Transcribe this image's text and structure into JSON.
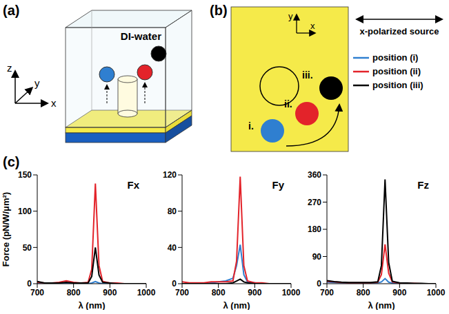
{
  "panels": [
    {
      "letter": "(a)",
      "medium": "DI-water",
      "axes": [
        "z",
        "y",
        "x"
      ]
    },
    {
      "letter": "(b)",
      "axes": [
        "y",
        "x"
      ],
      "source": "x-polarized source",
      "positions": [
        "i.",
        "ii.",
        "iii."
      ]
    },
    {
      "letter": "(c)"
    }
  ],
  "chart_data": [
    {
      "type": "line",
      "title": "Fx",
      "x_label": "λ (nm)",
      "y_label": "Force (pN/W/μm²)",
      "grid": false,
      "x": [
        700,
        720,
        740,
        760,
        780,
        800,
        820,
        840,
        850,
        860,
        870,
        880,
        900,
        920,
        940,
        960,
        980,
        1000
      ],
      "xlim": [
        700,
        1000
      ],
      "xticks": [
        700,
        800,
        900,
        1000
      ],
      "ylim": [
        0,
        150
      ],
      "yticks": [
        0,
        50,
        100,
        150
      ],
      "series": [
        {
          "name": "position (i)",
          "color": "#2f7fd0",
          "values": [
            0,
            0,
            0,
            0,
            0,
            0,
            0,
            0,
            1,
            3,
            1,
            0,
            0,
            0,
            0,
            0,
            0,
            0
          ]
        },
        {
          "name": "position (ii)",
          "color": "#e3232a",
          "values": [
            2,
            1,
            1,
            2,
            4,
            2,
            1,
            2,
            20,
            138,
            25,
            3,
            1,
            1,
            0,
            0,
            0,
            0
          ]
        },
        {
          "name": "position (iii)",
          "color": "#000000",
          "values": [
            3,
            1,
            1,
            1,
            2,
            1,
            1,
            1,
            10,
            50,
            12,
            2,
            1,
            0,
            0,
            0,
            0,
            0
          ]
        }
      ]
    },
    {
      "type": "line",
      "title": "Fy",
      "x_label": "λ (nm)",
      "grid": false,
      "x": [
        700,
        720,
        740,
        760,
        780,
        800,
        820,
        840,
        850,
        860,
        870,
        880,
        900,
        920,
        940,
        960,
        980,
        1000
      ],
      "xlim": [
        700,
        1000
      ],
      "xticks": [
        700,
        800,
        900,
        1000
      ],
      "ylim": [
        0,
        120
      ],
      "yticks": [
        0,
        40,
        80,
        120
      ],
      "series": [
        {
          "name": "position (i)",
          "color": "#2f7fd0",
          "values": [
            0,
            0,
            0,
            0,
            1,
            2,
            3,
            6,
            20,
            43,
            10,
            2,
            1,
            0,
            0,
            0,
            0,
            0
          ]
        },
        {
          "name": "position (ii)",
          "color": "#e3232a",
          "values": [
            2,
            1,
            1,
            1,
            2,
            2,
            2,
            3,
            25,
            118,
            20,
            3,
            1,
            1,
            0,
            0,
            0,
            0
          ]
        },
        {
          "name": "position (iii)",
          "color": "#000000",
          "values": [
            0,
            0,
            0,
            0,
            0,
            0,
            0,
            1,
            3,
            5,
            2,
            1,
            0,
            0,
            0,
            0,
            0,
            0
          ]
        }
      ]
    },
    {
      "type": "line",
      "title": "Fz",
      "x_label": "λ (nm)",
      "grid": false,
      "x": [
        700,
        720,
        740,
        760,
        780,
        800,
        820,
        840,
        850,
        860,
        870,
        880,
        900,
        920,
        940,
        960,
        980,
        1000
      ],
      "xlim": [
        700,
        1000
      ],
      "xticks": [
        700,
        800,
        900,
        1000
      ],
      "ylim": [
        0,
        360
      ],
      "yticks": [
        0,
        90,
        180,
        270,
        360
      ],
      "series": [
        {
          "name": "position (i)",
          "color": "#2f7fd0",
          "values": [
            5,
            4,
            3,
            2,
            2,
            2,
            2,
            3,
            6,
            17,
            5,
            2,
            1,
            1,
            0,
            0,
            0,
            0
          ]
        },
        {
          "name": "position (ii)",
          "color": "#e3232a",
          "values": [
            8,
            6,
            4,
            3,
            3,
            3,
            3,
            5,
            30,
            130,
            35,
            6,
            2,
            1,
            1,
            0,
            0,
            0
          ]
        },
        {
          "name": "position (iii)",
          "color": "#000000",
          "values": [
            10,
            7,
            5,
            4,
            4,
            4,
            4,
            6,
            60,
            345,
            70,
            8,
            3,
            2,
            1,
            1,
            0,
            0
          ]
        }
      ]
    }
  ]
}
